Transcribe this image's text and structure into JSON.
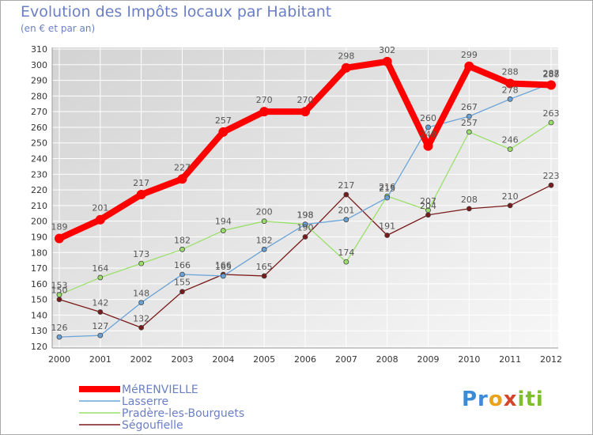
{
  "title": "Evolution des Impôts locaux par Habitant",
  "subtitle": "(en € et par an)",
  "logo_text": "Proxiti",
  "colors": {
    "grid": "#ffffff",
    "axis_text": "#333333",
    "label_text": "#555555",
    "legend_text": "#6b7fc4"
  },
  "chart_data": {
    "type": "line",
    "x": [
      "2000",
      "2001",
      "2002",
      "2003",
      "2004",
      "2005",
      "2006",
      "2007",
      "2008",
      "2009",
      "2010",
      "2011",
      "2012"
    ],
    "ylim": [
      120,
      310
    ],
    "yticks": [
      120,
      130,
      140,
      150,
      160,
      170,
      180,
      190,
      200,
      210,
      220,
      230,
      240,
      250,
      260,
      270,
      280,
      290,
      300,
      310
    ],
    "grid": true,
    "legend_position": "bottom-left",
    "series": [
      {
        "name": "MéRENVIELLE",
        "color": "#ff0000",
        "values": [
          189,
          201,
          217,
          227,
          257,
          270,
          270,
          298,
          302,
          248,
          299,
          288,
          287
        ]
      },
      {
        "name": "Lasserre",
        "color": "#6aa3d8",
        "values": [
          126,
          127,
          148,
          166,
          165,
          182,
          198,
          201,
          215,
          260,
          267,
          278,
          288
        ]
      },
      {
        "name": "Pradère-les-Bourguets",
        "color": "#9be06a",
        "values": [
          153,
          164,
          173,
          182,
          194,
          200,
          198,
          174,
          216,
          207,
          257,
          246,
          263
        ]
      },
      {
        "name": "Ségoufielle",
        "color": "#7a1a1a",
        "values": [
          150,
          142,
          132,
          155,
          166,
          165,
          190,
          217,
          191,
          204,
          208,
          210,
          223
        ]
      }
    ]
  }
}
